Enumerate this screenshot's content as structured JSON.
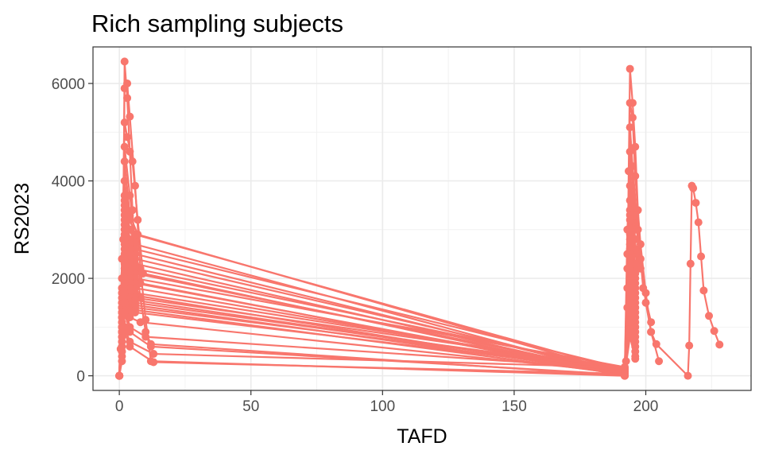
{
  "chart_data": {
    "type": "line",
    "title": "Rich sampling subjects",
    "xlabel": "TAFD",
    "ylabel": "RS2023",
    "xlim": [
      -10,
      240
    ],
    "ylim": [
      -300,
      6750
    ],
    "x_ticks": [
      0,
      50,
      100,
      150,
      200
    ],
    "y_ticks": [
      0,
      2000,
      4000,
      6000
    ],
    "grid": true,
    "legend": "none",
    "markers": true,
    "series_color": "#F8766D",
    "series": [
      {
        "x": [
          0,
          0.5,
          1,
          1.5,
          2,
          3,
          4,
          5,
          6,
          8,
          10,
          12,
          192,
          192.5,
          193,
          193.5,
          194,
          195,
          196,
          197,
          198,
          200,
          202,
          204,
          216,
          216.5,
          217,
          217.5,
          218,
          219,
          220,
          221,
          222,
          224,
          226,
          228
        ],
        "y": [
          0,
          550,
          1400,
          2800,
          6450,
          5700,
          4600,
          3400,
          2500,
          1600,
          900,
          650,
          0,
          300,
          1800,
          4200,
          6300,
          5600,
          4700,
          3400,
          2400,
          1500,
          900,
          650,
          0,
          620,
          2300,
          3900,
          3850,
          3550,
          3150,
          2450,
          1750,
          1230,
          920,
          640
        ]
      },
      {
        "x": [
          0,
          1,
          2,
          3,
          4,
          6,
          8,
          10,
          12,
          192,
          193,
          194,
          195,
          196,
          198,
          200,
          202,
          205
        ],
        "y": [
          0,
          900,
          5900,
          6000,
          5320,
          3900,
          2200,
          1150,
          300,
          0,
          1400,
          5600,
          5300,
          4100,
          2700,
          1700,
          900,
          300
        ]
      },
      {
        "x": [
          0,
          1,
          2,
          3,
          5,
          7,
          9,
          192,
          193,
          194,
          195,
          197,
          199,
          202
        ],
        "y": [
          0,
          1700,
          5200,
          4900,
          4400,
          3200,
          2100,
          0,
          2200,
          5100,
          4300,
          3000,
          1800,
          1100
        ]
      },
      {
        "x": [
          0,
          1,
          2,
          4,
          6,
          8,
          192,
          193,
          194,
          196,
          198
        ],
        "y": [
          0,
          1100,
          4700,
          3700,
          2800,
          1900,
          0,
          2500,
          4600,
          3300,
          2200
        ]
      },
      {
        "x": [
          0,
          1,
          2,
          4,
          7,
          192,
          193,
          194,
          196
        ],
        "y": [
          0,
          2400,
          4400,
          3300,
          2900,
          50,
          3000,
          4200,
          3000
        ]
      },
      {
        "x": [
          0,
          1,
          2,
          4,
          6,
          192,
          194,
          196
        ],
        "y": [
          0,
          1500,
          4000,
          3200,
          2900,
          100,
          3900,
          2800
        ]
      },
      {
        "x": [
          0,
          1,
          2,
          4,
          6,
          192,
          194,
          197
        ],
        "y": [
          0,
          2000,
          3700,
          3000,
          2700,
          0,
          3600,
          2300
        ]
      },
      {
        "x": [
          0,
          1,
          2,
          4,
          6,
          192,
          194,
          196
        ],
        "y": [
          0,
          1300,
          3600,
          2800,
          2600,
          150,
          3400,
          2500
        ]
      },
      {
        "x": [
          0,
          1,
          2,
          4,
          6,
          192,
          194,
          196
        ],
        "y": [
          0,
          1600,
          3500,
          2700,
          2500,
          30,
          3300,
          2600
        ]
      },
      {
        "x": [
          0,
          1,
          2,
          4,
          6,
          192,
          194,
          197
        ],
        "y": [
          0,
          1400,
          3400,
          2600,
          2400,
          80,
          3200,
          2200
        ]
      },
      {
        "x": [
          0,
          1,
          2,
          4,
          6,
          192,
          194,
          196
        ],
        "y": [
          0,
          1800,
          3300,
          2500,
          2300,
          20,
          3000,
          2300
        ]
      },
      {
        "x": [
          0,
          1,
          2,
          4,
          6,
          192,
          194,
          196
        ],
        "y": [
          0,
          1200,
          3200,
          2400,
          2200,
          120,
          2900,
          2000
        ]
      },
      {
        "x": [
          0,
          1,
          2,
          4,
          6,
          192,
          194,
          196
        ],
        "y": [
          0,
          1500,
          3100,
          2300,
          2100,
          60,
          2800,
          2100
        ]
      },
      {
        "x": [
          0,
          1,
          2,
          4,
          6,
          192,
          194,
          196
        ],
        "y": [
          0,
          1000,
          3000,
          2200,
          2000,
          180,
          2700,
          1900
        ]
      },
      {
        "x": [
          0,
          1,
          2,
          4,
          6,
          192,
          194,
          196
        ],
        "y": [
          0,
          1300,
          2900,
          2100,
          1900,
          40,
          2600,
          1800
        ]
      },
      {
        "x": [
          0,
          1,
          2,
          4,
          6,
          192,
          194,
          196
        ],
        "y": [
          0,
          1100,
          2800,
          2000,
          1800,
          90,
          2500,
          1700
        ]
      },
      {
        "x": [
          0,
          1,
          2,
          4,
          6,
          192,
          194,
          196
        ],
        "y": [
          0,
          900,
          2700,
          1900,
          1700,
          140,
          2400,
          1600
        ]
      },
      {
        "x": [
          0,
          1,
          2,
          4,
          6,
          192,
          194,
          196
        ],
        "y": [
          0,
          1200,
          2600,
          1800,
          1650,
          10,
          2300,
          1500
        ]
      },
      {
        "x": [
          0,
          1,
          2,
          4,
          6,
          192,
          194,
          196
        ],
        "y": [
          0,
          800,
          2500,
          1700,
          1600,
          160,
          2200,
          1400
        ]
      },
      {
        "x": [
          0,
          1,
          2,
          4,
          6,
          192,
          194,
          196
        ],
        "y": [
          0,
          1000,
          2400,
          1600,
          1550,
          70,
          2100,
          1300
        ]
      },
      {
        "x": [
          0,
          1,
          2,
          4,
          6,
          192,
          194,
          196
        ],
        "y": [
          0,
          700,
          2300,
          1500,
          1500,
          110,
          2000,
          1200
        ]
      },
      {
        "x": [
          0,
          1,
          2,
          4,
          6,
          192,
          194,
          196
        ],
        "y": [
          0,
          900,
          2200,
          1450,
          1450,
          50,
          1900,
          1100
        ]
      },
      {
        "x": [
          0,
          1,
          2,
          4,
          6,
          192,
          194,
          196
        ],
        "y": [
          0,
          600,
          2100,
          1400,
          1400,
          130,
          1800,
          1000
        ]
      },
      {
        "x": [
          0,
          1,
          2,
          4,
          6,
          192,
          194,
          196
        ],
        "y": [
          0,
          800,
          2000,
          1350,
          1350,
          30,
          1700,
          900
        ]
      },
      {
        "x": [
          0,
          1,
          2,
          4,
          6,
          192,
          194,
          196
        ],
        "y": [
          0,
          500,
          1900,
          1300,
          1300,
          100,
          1600,
          800
        ]
      },
      {
        "x": [
          0,
          1,
          2,
          4,
          8,
          192,
          194,
          196
        ],
        "y": [
          0,
          700,
          1700,
          1200,
          1100,
          60,
          1500,
          700
        ]
      },
      {
        "x": [
          0,
          1,
          2,
          4,
          10,
          192,
          194,
          196
        ],
        "y": [
          0,
          400,
          1500,
          1000,
          800,
          140,
          1300,
          600
        ]
      },
      {
        "x": [
          0,
          1,
          2,
          4,
          12,
          192,
          194,
          196
        ],
        "y": [
          0,
          600,
          1300,
          900,
          600,
          20,
          1100,
          500
        ]
      },
      {
        "x": [
          0,
          1,
          2,
          4,
          13,
          192,
          194,
          196
        ],
        "y": [
          0,
          300,
          1000,
          700,
          450,
          170,
          900,
          400
        ]
      },
      {
        "x": [
          0,
          1,
          2,
          4,
          13,
          192,
          194,
          196
        ],
        "y": [
          0,
          500,
          900,
          600,
          280,
          40,
          800,
          350
        ]
      }
    ]
  }
}
